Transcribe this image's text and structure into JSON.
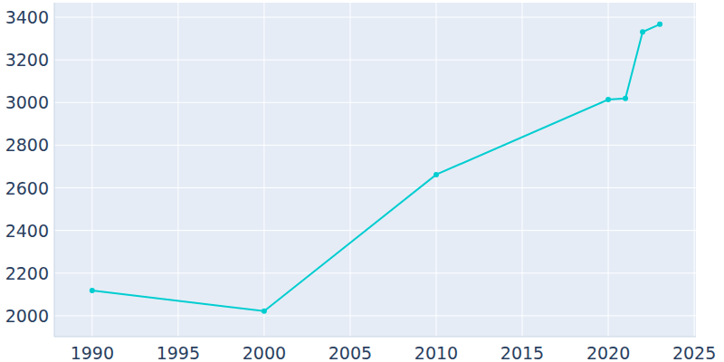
{
  "chart_data": {
    "type": "line",
    "x": [
      1990,
      2000,
      2010,
      2020,
      2021,
      2022,
      2023
    ],
    "values": [
      2118,
      2022,
      2662,
      3014,
      3019,
      3331,
      3367
    ],
    "color": "#00cdd0",
    "marker": "circle",
    "xlim": [
      1987.8,
      2025.1
    ],
    "xticks": [
      1990,
      1995,
      2000,
      2005,
      2010,
      2015,
      2020,
      2025
    ],
    "ylim": [
      1902,
      3468
    ],
    "yticks": [
      2000,
      2200,
      2400,
      2600,
      2800,
      3000,
      3200,
      3400
    ],
    "grid": true
  }
}
